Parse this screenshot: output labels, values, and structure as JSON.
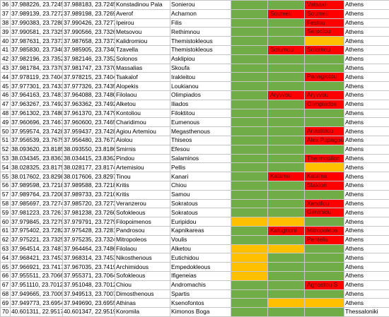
{
  "colors": {
    "green": "#70ad47",
    "yellow": "#ffc000",
    "red": "#ff0000",
    "orange": "#ff4a00",
    "lightgreen": "#92d050"
  },
  "rows": [
    {
      "n": "36",
      "a": "37.988226, 23.724572",
      "b": "37.988183, 23.724553",
      "c": "Konstadinou Pala",
      "d": "Sonierou",
      "e": "green",
      "f": "green",
      "fl": "",
      "g": "red",
      "gl": "Vatsaxi",
      "h": "Athens"
    },
    {
      "n": "37",
      "a": "37.989139, 23.727275",
      "b": "37.989198, 23.726910",
      "c": "Averof",
      "d": "Acharnon",
      "e": "green",
      "f": "red",
      "fl": "Soumeli",
      "g": "red",
      "gl": "Soumeli",
      "h": "Athens"
    },
    {
      "n": "38",
      "a": "37.990383, 23.728028",
      "b": "37.990426, 23.727739",
      "c": "Ipeirou",
      "d": "Filis",
      "e": "green",
      "f": "green",
      "fl": "",
      "g": "red",
      "gl": "Festou",
      "h": "Athens"
    },
    {
      "n": "39",
      "a": "37.990581, 23.732561",
      "b": "37.990566, 23.732668",
      "c": "Metsovou",
      "d": "Rethimnou",
      "e": "green",
      "f": "green",
      "fl": "",
      "g": "red",
      "gl": "Serpolou",
      "h": "Athens"
    },
    {
      "n": "40",
      "a": "37.987631, 23.737356",
      "b": "37.987658, 23.737329",
      "c": "Kalidromiou",
      "d": "Themistokleous",
      "e": "green",
      "f": "green",
      "fl": "",
      "g": "yellow",
      "gl": "",
      "h": "Athens"
    },
    {
      "n": "41",
      "a": "37.985830, 23.734096",
      "b": "37.985905, 23.734029",
      "c": "Tzavella",
      "d": "Themistokleous",
      "e": "green",
      "f": "red",
      "fl": "Solomou",
      "g": "red",
      "gl": "Solomou",
      "h": "Athens"
    },
    {
      "n": "42",
      "a": "37.982196, 23.735299",
      "b": "37.982146, 23.735253",
      "c": "Solonos",
      "d": "Asklipiou",
      "e": "green",
      "f": "green",
      "fl": "",
      "g": "green",
      "gl": "",
      "h": "Athens"
    },
    {
      "n": "43",
      "a": "37.981784, 23.737087",
      "b": "37.981747, 23.737007",
      "c": "Massalias",
      "d": "Skoufa",
      "e": "green",
      "f": "green",
      "fl": "",
      "g": "green",
      "gl": "",
      "h": "Athens"
    },
    {
      "n": "44",
      "a": "37.978119, 23.740486",
      "b": "37.978215, 23.740420",
      "c": "Tsakalof",
      "d": "Irakleitou",
      "e": "green",
      "f": "green",
      "fl": "",
      "g": "red",
      "gl": "Panagiotou",
      "h": "Athens"
    },
    {
      "n": "45",
      "a": "37.977301, 23.743344",
      "b": "37.977326, 23.743537",
      "c": "Alopekis",
      "d": "Loukianou",
      "e": "green",
      "f": "green",
      "fl": "",
      "g": "green",
      "gl": "",
      "h": "Athens"
    },
    {
      "n": "46",
      "a": "37.964163, 23.748121",
      "b": "37.964088, 23.748005",
      "c": "Filolaou",
      "d": "Olimpiados",
      "e": "green",
      "f": "red",
      "fl": "Aryvvou",
      "g": "red",
      "gl": "Aryvvou",
      "h": "Athens"
    },
    {
      "n": "47",
      "a": "37.963267, 23.749297",
      "b": "37.963362, 23.749207",
      "c": "Alketou",
      "d": "Iliados",
      "e": "green",
      "f": "green",
      "fl": "",
      "g": "red",
      "gl": "Olimpiados",
      "h": "Athens"
    },
    {
      "n": "48",
      "a": "37.961302, 23.748012",
      "b": "37.961370, 23.747938",
      "c": "Kontoliou",
      "d": "Filoktitou",
      "e": "green",
      "f": "green",
      "fl": "",
      "g": "green",
      "gl": "",
      "h": "Athens"
    },
    {
      "n": "49",
      "a": "37.960696, 23.746717",
      "b": "37.960600, 23.746570",
      "c": "Charidimou",
      "d": "Eumenous",
      "e": "green",
      "f": "green",
      "fl": "",
      "g": "green",
      "gl": "",
      "h": "Athens"
    },
    {
      "n": "50",
      "a": "37.959574, 23.742855",
      "b": "37.959437, 23.742873",
      "c": "Agiou Artemiou",
      "d": "Megasthenous",
      "e": "green",
      "f": "green",
      "fl": "",
      "g": "red",
      "gl": "Anastolou",
      "h": "Athens"
    },
    {
      "n": "51",
      "a": "37.956539, 23.767544",
      "b": "37.956480, 23.767392",
      "c": "Aiolou",
      "d": "Thiseos",
      "e": "green",
      "f": "green",
      "fl": "",
      "g": "red",
      "gl": "Alex Papagou",
      "h": "Athens"
    },
    {
      "n": "52",
      "a": "38.093620, 23.818520",
      "b": "38.093550, 23.818673",
      "c": "Smirnis",
      "d": "Efesou",
      "e": "green",
      "f": "green",
      "fl": "",
      "g": "green",
      "gl": "",
      "h": "Athens"
    },
    {
      "n": "53",
      "a": "38.034345, 23.836342",
      "b": "38.034415, 23.836243",
      "c": "Pindou",
      "d": "Salaminos",
      "e": "green",
      "f": "green",
      "fl": "",
      "g": "red",
      "gl": "Thermopilon",
      "h": "Athens"
    },
    {
      "n": "54",
      "a": "38.028325, 23.817542",
      "b": "38.028177, 23.817410",
      "c": "Artemisiou",
      "d": "Pellis",
      "e": "green",
      "f": "green",
      "fl": "",
      "g": "yellow",
      "gl": "",
      "h": "Athens"
    },
    {
      "n": "55",
      "a": "38.017602, 23.829854",
      "b": "38.017606, 23.829774",
      "c": "Tinou",
      "d": "Kanari",
      "e": "green",
      "f": "red",
      "fl": "Kalama",
      "g": "red",
      "gl": "Kalama",
      "h": "Athens"
    },
    {
      "n": "56",
      "a": "37.989598, 23.721817",
      "b": "37.989588, 23.721880",
      "c": "Kritis",
      "d": "Chiou",
      "e": "green",
      "f": "green",
      "fl": "",
      "g": "red",
      "gl": "Stakion",
      "h": "Athens"
    },
    {
      "n": "57",
      "a": "37.989764, 23.720821",
      "b": "37.989733, 23.721013",
      "c": "Kritis",
      "d": "Samou",
      "e": "green",
      "f": "green",
      "fl": "",
      "g": "green",
      "gl": "",
      "h": "Athens"
    },
    {
      "n": "58",
      "a": "37.985697, 23.727428",
      "b": "37.985720, 23.727323",
      "c": "Veranzerou",
      "d": "Sokratous",
      "e": "green",
      "f": "green",
      "fl": "",
      "g": "red",
      "gl": "Xenofou",
      "h": "Athens"
    },
    {
      "n": "59",
      "a": "37.981223, 23.726190",
      "b": "37.981238, 23.726091",
      "c": "Sofokleous",
      "d": "Sokratous",
      "e": "green",
      "f": "green",
      "fl": "",
      "g": "red",
      "gl": "Geraniou",
      "h": "Athens"
    },
    {
      "n": "60",
      "a": "37.979845, 23.727930",
      "b": "37.979791, 23.727913",
      "c": "Filopoimenos",
      "d": "Euripidou",
      "e": "yellow",
      "f": "yellow",
      "fl": "",
      "g": "green",
      "gl": "",
      "h": "Athens"
    },
    {
      "n": "61",
      "a": "37.975402, 23.728210",
      "b": "37.975428, 23.728108",
      "c": "Pandrosou",
      "d": "Kapnikareas",
      "e": "green",
      "f": "red",
      "fl": "Kalogrioni",
      "g": "red",
      "gl": "Mitropoleos",
      "h": "Athens"
    },
    {
      "n": "62",
      "a": "37.975221, 23.732593",
      "b": "37.975235, 23.732469",
      "c": "Mitropoleos",
      "d": "Voulis",
      "e": "green",
      "f": "green",
      "fl": "",
      "g": "red",
      "gl": "Pentelis",
      "h": "Athens"
    },
    {
      "n": "63",
      "a": "37.964514, 23.748723",
      "b": "37.964464, 23.748653",
      "c": "Filolaou",
      "d": "Alketou",
      "e": "yellow",
      "f": "yellow",
      "fl": "",
      "g": "green",
      "gl": "",
      "h": "Athens"
    },
    {
      "n": "64",
      "a": "37.968421, 23.745331",
      "b": "37.968314, 23.745331",
      "c": "Nikosthenous",
      "d": "Eutichidou",
      "e": "yellow",
      "f": "green",
      "fl": "",
      "g": "green",
      "gl": "",
      "h": "Athens"
    },
    {
      "n": "65",
      "a": "37.966921, 23.741744",
      "b": "37.967035, 23.741964",
      "c": "Archimidous",
      "d": "Empedokleous",
      "e": "yellow",
      "f": "green",
      "fl": "",
      "g": "green",
      "gl": "",
      "h": "Athens"
    },
    {
      "n": "66",
      "a": "37.955511, 23.706632",
      "b": "37.955371, 23.706406",
      "c": "Sofokleous",
      "d": "Ifigeneias",
      "e": "yellow",
      "f": "green",
      "fl": "",
      "g": "green",
      "gl": "",
      "h": "Athens"
    },
    {
      "n": "67",
      "a": "37.951110, 23.701234",
      "b": "37.951048, 23.701287",
      "c": "Chiou",
      "d": "Andromachis",
      "e": "green",
      "f": "green",
      "fl": "",
      "g": "red",
      "gl": "Agnostou S",
      "h": "Athens"
    },
    {
      "n": "68",
      "a": "37.949665, 23.700907",
      "b": "37.949513, 23.700713",
      "c": "Dimosthenous",
      "d": "Spartis",
      "e": "green",
      "f": "green",
      "fl": "",
      "g": "green",
      "gl": "",
      "h": "Athens"
    },
    {
      "n": "69",
      "a": "37.949773, 23.695461",
      "b": "37.949690, 23.695572",
      "c": "Athinas",
      "d": "Ksenofontos",
      "e": "green",
      "f": "yellow",
      "fl": "",
      "g": "yellow",
      "gl": "",
      "h": "Athens"
    },
    {
      "n": "70",
      "a": "40.601311, 22.951784",
      "b": "40.601347, 22.951966",
      "c": "Koromila",
      "d": "Kimonos Boga",
      "e": "green",
      "f": "green",
      "fl": "",
      "g": "green",
      "gl": "",
      "h": "Thessaloniki"
    }
  ]
}
